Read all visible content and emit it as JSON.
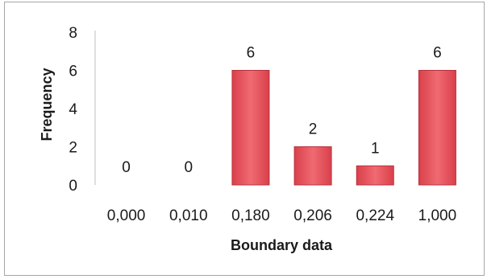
{
  "chart_data": {
    "type": "bar",
    "title": "",
    "xlabel": "Boundary data",
    "ylabel": "Frequency",
    "categories": [
      "0,000",
      "0,010",
      "0,180",
      "0,206",
      "0,224",
      "1,000"
    ],
    "values": [
      0,
      0,
      6,
      2,
      1,
      6
    ],
    "data_labels": [
      "0",
      "0",
      "6",
      "2",
      "1",
      "6"
    ],
    "ylim": [
      0,
      8
    ],
    "yticks": [
      "0",
      "2",
      "4",
      "6",
      "8"
    ],
    "ytick_values": [
      0,
      2,
      4,
      6,
      8
    ],
    "grid": false,
    "legend": "none",
    "bar_color": "#e8555f",
    "bar_edge_color": "#b8323c"
  }
}
